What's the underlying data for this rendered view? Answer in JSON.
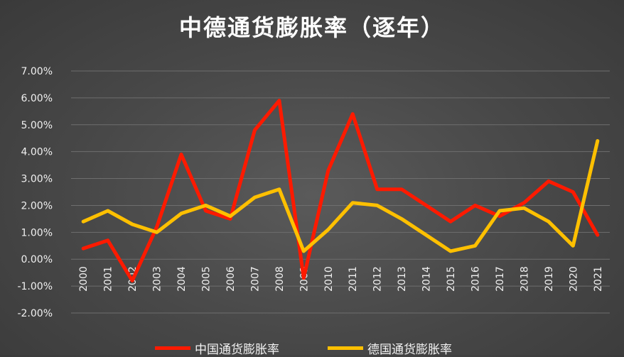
{
  "chart_data": {
    "type": "line",
    "title": "中德通货膨胀率（逐年）",
    "categories": [
      "2000",
      "2001",
      "2002",
      "2003",
      "2004",
      "2005",
      "2006",
      "2007",
      "2008",
      "2009",
      "2010",
      "2011",
      "2012",
      "2013",
      "2014",
      "2015",
      "2016",
      "2017",
      "2018",
      "2019",
      "2020",
      "2021"
    ],
    "series": [
      {
        "name": "中国通货膨胀率",
        "color": "#ff1a00",
        "values": [
          0.4,
          0.7,
          -0.8,
          1.2,
          3.9,
          1.8,
          1.5,
          4.8,
          5.9,
          -0.7,
          3.3,
          5.4,
          2.6,
          2.6,
          2.0,
          1.4,
          2.0,
          1.6,
          2.1,
          2.9,
          2.5,
          0.9
        ]
      },
      {
        "name": "德国通货膨胀率",
        "color": "#ffc000",
        "values": [
          1.4,
          1.8,
          1.3,
          1.0,
          1.7,
          2.0,
          1.6,
          2.3,
          2.6,
          0.3,
          1.1,
          2.1,
          2.0,
          1.5,
          0.9,
          0.3,
          0.5,
          1.8,
          1.9,
          1.4,
          0.5,
          4.4
        ]
      }
    ],
    "ylim": [
      -2,
      7
    ],
    "yticks": [
      "-2.00%",
      "-1.00%",
      "0.00%",
      "1.00%",
      "2.00%",
      "3.00%",
      "4.00%",
      "5.00%",
      "6.00%",
      "7.00%"
    ],
    "grid": true,
    "legend_position": "bottom",
    "xlabel": "",
    "ylabel": ""
  }
}
